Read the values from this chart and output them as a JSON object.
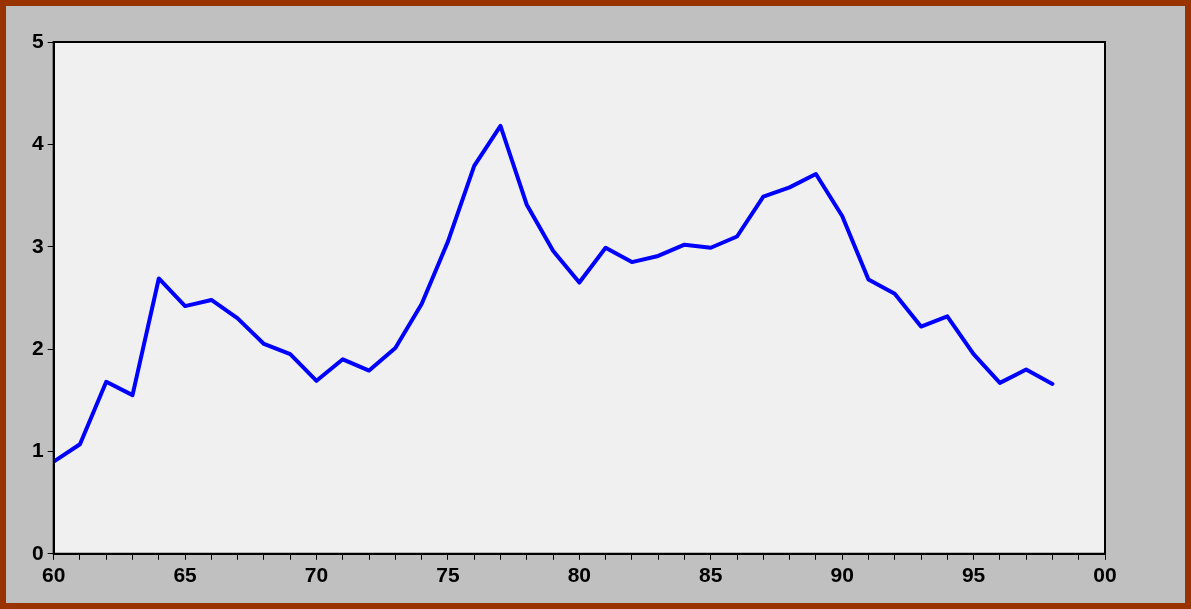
{
  "chart_data": {
    "type": "line",
    "color": "#0000ff",
    "x": [
      1960,
      1961,
      1962,
      1963,
      1964,
      1965,
      1966,
      1967,
      1968,
      1969,
      1970,
      1971,
      1972,
      1973,
      1974,
      1975,
      1976,
      1977,
      1978,
      1979,
      1980,
      1981,
      1982,
      1983,
      1984,
      1985,
      1986,
      1987,
      1988,
      1989,
      1990,
      1991,
      1992,
      1993,
      1994,
      1995,
      1996,
      1997,
      1998
    ],
    "values": [
      0.9,
      1.07,
      1.68,
      1.55,
      2.69,
      2.42,
      2.48,
      2.3,
      2.05,
      1.95,
      1.69,
      1.9,
      1.79,
      2.01,
      2.44,
      3.05,
      3.79,
      4.18,
      3.41,
      2.96,
      2.65,
      2.99,
      2.85,
      2.91,
      3.02,
      2.99,
      3.1,
      3.49,
      3.58,
      3.71,
      3.3,
      2.68,
      2.54,
      2.22,
      2.32,
      1.95,
      1.67,
      1.8,
      1.66
    ],
    "xlim": [
      1960,
      2000
    ],
    "xticks": [
      {
        "value": 1960,
        "label": "60"
      },
      {
        "value": 1961,
        "label": null
      },
      {
        "value": 1962,
        "label": null
      },
      {
        "value": 1963,
        "label": null
      },
      {
        "value": 1964,
        "label": null
      },
      {
        "value": 1965,
        "label": "65"
      },
      {
        "value": 1966,
        "label": null
      },
      {
        "value": 1967,
        "label": null
      },
      {
        "value": 1968,
        "label": null
      },
      {
        "value": 1969,
        "label": null
      },
      {
        "value": 1970,
        "label": "70"
      },
      {
        "value": 1971,
        "label": null
      },
      {
        "value": 1972,
        "label": null
      },
      {
        "value": 1973,
        "label": null
      },
      {
        "value": 1974,
        "label": null
      },
      {
        "value": 1975,
        "label": "75"
      },
      {
        "value": 1976,
        "label": null
      },
      {
        "value": 1977,
        "label": null
      },
      {
        "value": 1978,
        "label": null
      },
      {
        "value": 1979,
        "label": null
      },
      {
        "value": 1980,
        "label": "80"
      },
      {
        "value": 1981,
        "label": null
      },
      {
        "value": 1982,
        "label": null
      },
      {
        "value": 1983,
        "label": null
      },
      {
        "value": 1984,
        "label": null
      },
      {
        "value": 1985,
        "label": "85"
      },
      {
        "value": 1986,
        "label": null
      },
      {
        "value": 1987,
        "label": null
      },
      {
        "value": 1988,
        "label": null
      },
      {
        "value": 1989,
        "label": null
      },
      {
        "value": 1990,
        "label": "90"
      },
      {
        "value": 1991,
        "label": null
      },
      {
        "value": 1992,
        "label": null
      },
      {
        "value": 1993,
        "label": null
      },
      {
        "value": 1994,
        "label": null
      },
      {
        "value": 1995,
        "label": "95"
      },
      {
        "value": 1996,
        "label": null
      },
      {
        "value": 1997,
        "label": null
      },
      {
        "value": 1998,
        "label": null
      },
      {
        "value": 1999,
        "label": null
      },
      {
        "value": 2000,
        "label": "00"
      }
    ],
    "ylim": [
      0,
      5
    ],
    "yticks": [
      0,
      1,
      2,
      3,
      4,
      5
    ],
    "grid": false,
    "legend": false,
    "marker": "none",
    "line_style": "solid"
  }
}
